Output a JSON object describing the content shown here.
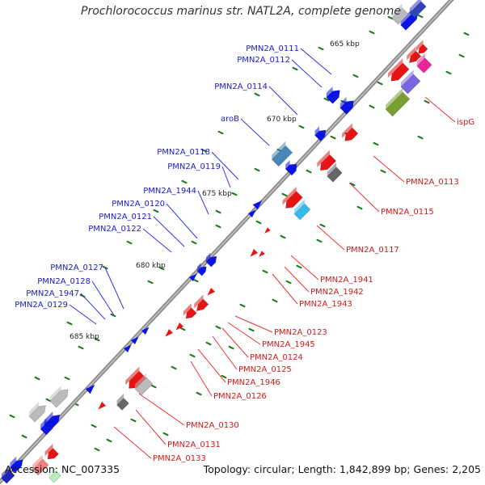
{
  "title": "Prochlorococcus marinus str. NATL2A, complete genome",
  "footer": {
    "accession": "Accession: NC_007335",
    "summary": "Topology: circular; Length: 1,842,899 bp; Genes: 2,205"
  },
  "scale_labels": [
    "665 kbp",
    "670 kbp",
    "675 kbp",
    "680 kbp",
    "685 kbp"
  ],
  "colors": {
    "backbone": "#8c8c8c",
    "forward_gene": "#0a14e6",
    "reverse_gene": "#e61414",
    "forward_label": "#1a1acc",
    "reverse_label": "#cc1a1a",
    "tick": "#1a7a1a",
    "cyan_box": "#33bbee",
    "steel_box": "#4a86b8",
    "gray_box": "#bbbbbb",
    "dark_gray_box": "#666666",
    "magenta_box": "#ee2299",
    "violet_box": "#7766dd",
    "olive_box": "#77a030"
  },
  "forward_labels": [
    "PMN2A_0111",
    "PMN2A_0112",
    "PMN2A_0114",
    "aroB",
    "PMN2A_0118",
    "PMN2A_0119",
    "PMN2A_1944",
    "PMN2A_0120",
    "PMN2A_0121",
    "PMN2A_0122",
    "PMN2A_0127",
    "PMN2A_0128",
    "PMN2A_1947",
    "PMN2A_0129"
  ],
  "reverse_labels": [
    "ispG",
    "PMN2A_0113",
    "PMN2A_0115",
    "PMN2A_0117",
    "PMN2A_1941",
    "PMN2A_1942",
    "PMN2A_1943",
    "PMN2A_0123",
    "PMN2A_1945",
    "PMN2A_0124",
    "PMN2A_0125",
    "PMN2A_1946",
    "PMN2A_0126",
    "PMN2A_0130",
    "PMN2A_0131",
    "PMN2A_0133"
  ]
}
